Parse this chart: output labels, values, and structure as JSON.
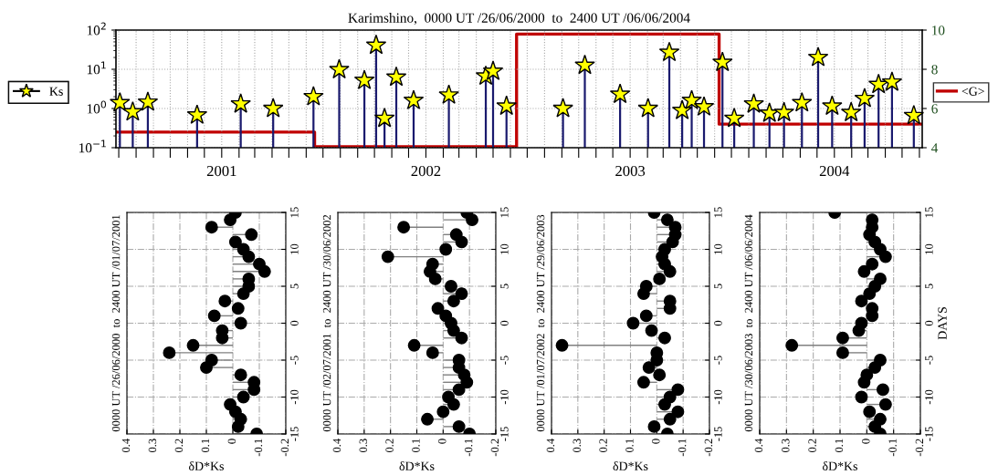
{
  "chart_data": [
    {
      "type": "lollipop",
      "title": "Karimshino,  0000 UT /26/06/2000  to  2400 UT /06/06/2004",
      "log": "y",
      "grid": true,
      "legend": "left",
      "xlim": [
        "2000-06-26",
        "2004-06-06"
      ],
      "xticks": [
        {
          "value": "2000-07",
          "label": null
        },
        {
          "value": "2000-08",
          "label": null
        },
        {
          "value": "2000-09",
          "label": null
        },
        {
          "value": "2000-10",
          "label": null
        },
        {
          "value": "2000-11",
          "label": null
        },
        {
          "value": "2000-12",
          "label": null
        },
        {
          "value": "2001-01",
          "label": "2001"
        },
        {
          "value": "2001-02",
          "label": null
        },
        {
          "value": "2001-03",
          "label": null
        },
        {
          "value": "2001-04",
          "label": null
        },
        {
          "value": "2001-05",
          "label": null
        },
        {
          "value": "2001-06",
          "label": null
        },
        {
          "value": "2001-07",
          "label": null
        },
        {
          "value": "2001-08",
          "label": null
        },
        {
          "value": "2001-09",
          "label": null
        },
        {
          "value": "2001-10",
          "label": null
        },
        {
          "value": "2001-11",
          "label": null
        },
        {
          "value": "2001-12",
          "label": null
        },
        {
          "value": "2002-01",
          "label": "2002"
        },
        {
          "value": "2002-02",
          "label": null
        },
        {
          "value": "2002-03",
          "label": null
        },
        {
          "value": "2002-04",
          "label": null
        },
        {
          "value": "2002-05",
          "label": null
        },
        {
          "value": "2002-06",
          "label": null
        },
        {
          "value": "2002-07",
          "label": null
        },
        {
          "value": "2002-08",
          "label": null
        },
        {
          "value": "2002-09",
          "label": null
        },
        {
          "value": "2002-10",
          "label": null
        },
        {
          "value": "2002-11",
          "label": null
        },
        {
          "value": "2002-12",
          "label": null
        },
        {
          "value": "2003-01",
          "label": "2003"
        },
        {
          "value": "2003-02",
          "label": null
        },
        {
          "value": "2003-03",
          "label": null
        },
        {
          "value": "2003-04",
          "label": null
        },
        {
          "value": "2003-05",
          "label": null
        },
        {
          "value": "2003-06",
          "label": null
        },
        {
          "value": "2003-07",
          "label": null
        },
        {
          "value": "2003-08",
          "label": null
        },
        {
          "value": "2003-09",
          "label": null
        },
        {
          "value": "2003-10",
          "label": null
        },
        {
          "value": "2003-11",
          "label": null
        },
        {
          "value": "2003-12",
          "label": null
        },
        {
          "value": "2004-01",
          "label": "2004"
        },
        {
          "value": "2004-02",
          "label": null
        },
        {
          "value": "2004-03",
          "label": null
        },
        {
          "value": "2004-04",
          "label": null
        },
        {
          "value": "2004-05",
          "label": null
        },
        {
          "value": "2004-06",
          "label": null
        }
      ],
      "ylim": [
        0.1,
        100
      ],
      "yticks": [
        {
          "value": 0.1,
          "label": "10$^{−1}$"
        },
        {
          "value": 1,
          "label": "10$^{0}$"
        },
        {
          "value": 10,
          "label": "10$^{1}$"
        },
        {
          "value": 100,
          "label": "10$^{2}$"
        }
      ],
      "y2lim": [
        4,
        10
      ],
      "y2ticks": [
        4,
        6,
        8,
        10
      ],
      "series": [
        {
          "name": "Ks",
          "type": "lollipop",
          "marker": "star",
          "color": "#ffff00",
          "x": [
            "2000-07-03",
            "2000-07-26",
            "2000-08-22",
            "2000-11-18",
            "2001-02-04",
            "2001-04-03",
            "2001-06-14",
            "2001-07-30",
            "2001-09-13",
            "2001-10-04",
            "2001-10-19",
            "2001-11-09",
            "2001-12-10",
            "2002-02-11",
            "2002-04-18",
            "2002-05-01",
            "2002-05-25",
            "2002-09-03",
            "2002-10-12",
            "2002-12-14",
            "2003-02-02",
            "2003-03-12",
            "2003-04-04",
            "2003-04-21",
            "2003-05-13",
            "2003-06-15",
            "2003-07-06",
            "2003-08-10",
            "2003-09-07",
            "2003-10-03",
            "2003-11-04",
            "2003-12-03",
            "2003-12-28",
            "2004-01-31",
            "2004-02-24",
            "2004-03-20",
            "2004-04-13",
            "2004-05-22"
          ],
          "values": [
            1.4,
            0.82,
            1.45,
            0.68,
            1.3,
            1.0,
            2.0,
            9.8,
            5.2,
            41,
            0.56,
            6.3,
            1.6,
            2.2,
            6.7,
            8.9,
            1.15,
            1.0,
            12.6,
            2.3,
            1.0,
            27,
            0.89,
            1.6,
            1.1,
            15,
            0.56,
            1.3,
            0.76,
            0.79,
            1.4,
            20,
            1.15,
            0.79,
            1.8,
            4.1,
            4.7,
            0.66
          ]
        },
        {
          "name": "<G>",
          "type": "step",
          "marker": "none",
          "axis": "y2",
          "color": "#c00000",
          "x": [
            "2000-06-26",
            "2001-06-16",
            "2002-06-12",
            "2003-06-09",
            "2004-06-06"
          ],
          "values": [
            4.8,
            4.05,
            9.8,
            5.2,
            5.2
          ]
        }
      ]
    },
    {
      "type": "lollipop",
      "orientation": "horizontal",
      "title": "0000 UT /26/06/2000  to  2400 UT /01/07/2001",
      "xlabel": "δD*Ks",
      "grid": true,
      "marker": "circle",
      "xlim": [
        0.4,
        -0.2
      ],
      "xticks": [
        0.4,
        0.3,
        0.2,
        0.1,
        0,
        -0.1,
        -0.2
      ],
      "ylim": [
        -15,
        15
      ],
      "yticks": [
        -15,
        -10,
        -5,
        0,
        5,
        10,
        15
      ],
      "series": [
        {
          "color": "#000000",
          "x": [
            15,
            14,
            13,
            12,
            11,
            10,
            9,
            8,
            7,
            6,
            5,
            4,
            3,
            2,
            1,
            0,
            -1,
            -2,
            -3,
            -4,
            -5,
            -6,
            -7,
            -8,
            -9,
            -10,
            -11,
            -12,
            -13,
            -14,
            -15
          ],
          "values": [
            -0.01,
            0.01,
            0.08,
            -0.07,
            -0.01,
            -0.04,
            -0.06,
            -0.1,
            -0.12,
            -0.06,
            -0.06,
            -0.04,
            0.03,
            -0.02,
            0.07,
            -0.03,
            0.04,
            0.04,
            0.15,
            0.24,
            0.08,
            0.1,
            -0.03,
            -0.08,
            -0.08,
            -0.04,
            0.01,
            -0.01,
            -0.03,
            -0.02,
            -0.09
          ]
        }
      ]
    },
    {
      "type": "lollipop",
      "orientation": "horizontal",
      "title": "0000 UT /02/07/2001  to  2400 UT /30/06/2002",
      "xlabel": "δD*Ks",
      "grid": true,
      "marker": "circle",
      "xlim": [
        0.4,
        -0.2
      ],
      "xticks": [
        0.4,
        0.3,
        0.2,
        0.1,
        0,
        -0.1,
        -0.2
      ],
      "ylim": [
        -15,
        15
      ],
      "yticks": [
        -15,
        -10,
        -5,
        0,
        5,
        10,
        15
      ],
      "series": [
        {
          "color": "#000000",
          "x": [
            15,
            14,
            13,
            12,
            11,
            10,
            9,
            8,
            7,
            6,
            5,
            4,
            3,
            2,
            1,
            0,
            -1,
            -2,
            -3,
            -4,
            -5,
            -6,
            -7,
            -8,
            -9,
            -10,
            -11,
            -12,
            -13,
            -14,
            -15
          ],
          "values": [
            -0.09,
            -0.11,
            0.15,
            -0.05,
            -0.07,
            -0.01,
            0.21,
            0.04,
            0.05,
            0.03,
            -0.03,
            -0.07,
            -0.04,
            0.02,
            -0.01,
            -0.03,
            -0.04,
            -0.07,
            0.11,
            0.04,
            -0.06,
            -0.06,
            -0.08,
            -0.09,
            -0.06,
            -0.02,
            -0.04,
            0.0,
            0.06,
            -0.06,
            -0.1
          ]
        }
      ]
    },
    {
      "type": "lollipop",
      "orientation": "horizontal",
      "title": "0000 UT /01/07/2002  to  2400 UT /29/06/2003",
      "xlabel": "δD*Ks",
      "grid": true,
      "marker": "circle",
      "xlim": [
        0.4,
        -0.2
      ],
      "xticks": [
        0.4,
        0.3,
        0.2,
        0.1,
        0,
        -0.1,
        -0.2
      ],
      "ylim": [
        -15,
        15
      ],
      "yticks": [
        -15,
        -10,
        -5,
        0,
        5,
        10,
        15
      ],
      "series": [
        {
          "color": "#000000",
          "x": [
            15,
            14,
            13,
            12,
            11,
            10,
            9,
            8,
            7,
            6,
            5,
            4,
            3,
            2,
            1,
            0,
            -1,
            -2,
            -3,
            -4,
            -5,
            -6,
            -7,
            -8,
            -9,
            -10,
            -11,
            -12,
            -13,
            -14,
            -15
          ],
          "values": [
            0.01,
            -0.04,
            -0.07,
            -0.07,
            -0.06,
            -0.03,
            -0.02,
            -0.03,
            -0.05,
            -0.01,
            0.04,
            0.05,
            -0.05,
            -0.05,
            0.04,
            0.09,
            0.02,
            -0.03,
            0.36,
            0.0,
            0.0,
            0.03,
            -0.01,
            0.05,
            -0.08,
            -0.05,
            -0.03,
            -0.08,
            -0.05,
            0.01,
            -0.04
          ]
        }
      ]
    },
    {
      "type": "lollipop",
      "orientation": "horizontal",
      "title": "0000 UT /30/06/2003  to  2400 UT /06/06/2004",
      "xlabel": "δD*Ks",
      "ylabel": "DAYS",
      "grid": true,
      "marker": "circle",
      "xlim": [
        0.4,
        -0.2
      ],
      "xticks": [
        0.4,
        0.3,
        0.2,
        0.1,
        0,
        -0.1,
        -0.2
      ],
      "ylim": [
        -15,
        15
      ],
      "yticks": [
        -15,
        -10,
        -5,
        0,
        5,
        10,
        15
      ],
      "series": [
        {
          "color": "#000000",
          "x": [
            15,
            14,
            13,
            12,
            11,
            10,
            9,
            8,
            7,
            6,
            5,
            4,
            3,
            2,
            1,
            0,
            -1,
            -2,
            -3,
            -4,
            -5,
            -6,
            -7,
            -8,
            -9,
            -10,
            -11,
            -12,
            -13,
            -14,
            -15
          ],
          "values": [
            0.12,
            -0.02,
            -0.02,
            -0.01,
            -0.03,
            -0.05,
            -0.07,
            -0.02,
            0.01,
            -0.05,
            -0.03,
            -0.01,
            0.02,
            -0.02,
            -0.02,
            0.02,
            0.03,
            0.09,
            0.28,
            0.09,
            -0.05,
            -0.03,
            0.0,
            0.01,
            -0.06,
            0.02,
            -0.07,
            -0.01,
            -0.05,
            -0.03,
            -0.05
          ]
        }
      ]
    }
  ]
}
